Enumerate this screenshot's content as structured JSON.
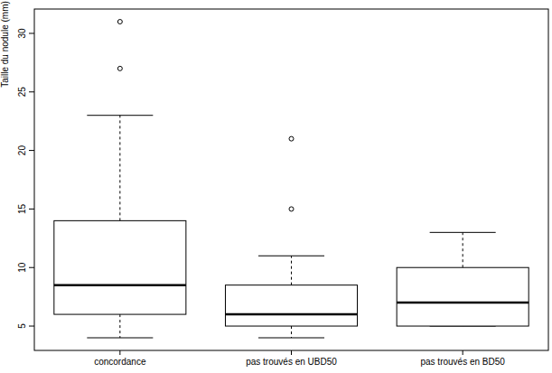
{
  "chart_data": {
    "type": "boxplot",
    "y_label": "Taille du nodule (mm)",
    "categories": [
      "concordance",
      "pas trouvés en UBD50",
      "pas trouvés en BD50"
    ],
    "boxes": [
      {
        "min": 4,
        "q1": 6,
        "median": 8.5,
        "q3": 14,
        "max": 23,
        "outliers": [
          27,
          31
        ]
      },
      {
        "min": 4,
        "q1": 5,
        "median": 6,
        "q3": 8.5,
        "max": 11,
        "outliers": [
          15,
          21
        ]
      },
      {
        "min": 5,
        "q1": 5,
        "median": 7,
        "q3": 10,
        "max": 13,
        "outliers": []
      }
    ],
    "color": "#000000",
    "line_style": "dashed",
    "marker": "circle",
    "grid": false,
    "ylim": [
      2.92,
      32.08
    ],
    "yticks": [
      5,
      10,
      15,
      20,
      25,
      30
    ]
  }
}
